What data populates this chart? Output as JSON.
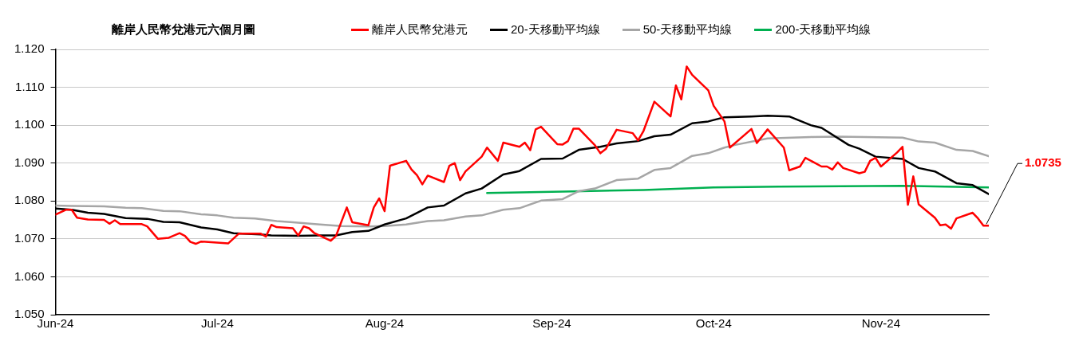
{
  "chart_data": {
    "type": "line",
    "title": "離岸人民幣兌港元六個月圖",
    "legend": "top",
    "grid": "y",
    "marker": "none",
    "line_style": "solid",
    "xlim": [
      "2024-06-01",
      "2024-11-21"
    ],
    "xticks": [
      {
        "value": "2024-06-01",
        "label": "Jun-24"
      },
      {
        "value": "2024-07-01",
        "label": "Jul-24"
      },
      {
        "value": "2024-08-01",
        "label": "Aug-24"
      },
      {
        "value": "2024-09-01",
        "label": "Sep-24"
      },
      {
        "value": "2024-10-01",
        "label": "Oct-24"
      },
      {
        "value": "2024-11-01",
        "label": "Nov-24"
      }
    ],
    "ylim": [
      1.05,
      1.12
    ],
    "yticks": [
      {
        "value": 1.05,
        "label": "1.050"
      },
      {
        "value": 1.06,
        "label": "1.060"
      },
      {
        "value": 1.07,
        "label": "1.070"
      },
      {
        "value": 1.08,
        "label": "1.080"
      },
      {
        "value": 1.09,
        "label": "1.090"
      },
      {
        "value": 1.1,
        "label": "1.100"
      },
      {
        "value": 1.11,
        "label": "1.110"
      },
      {
        "value": 1.12,
        "label": "1.120"
      }
    ],
    "annotations": [
      {
        "text": "1.0735",
        "x": "2024-11-21",
        "y": 1.0735
      }
    ],
    "series": [
      {
        "name": "離岸人民幣兌港元",
        "color": "#ff0000",
        "x": [
          "2024-06-01",
          "2024-06-03",
          "2024-06-04",
          "2024-06-05",
          "2024-06-07",
          "2024-06-10",
          "2024-06-11",
          "2024-06-12",
          "2024-06-13",
          "2024-06-17",
          "2024-06-18",
          "2024-06-20",
          "2024-06-22",
          "2024-06-24",
          "2024-06-25",
          "2024-06-26",
          "2024-06-27",
          "2024-06-28",
          "2024-07-03",
          "2024-07-05",
          "2024-07-09",
          "2024-07-10",
          "2024-07-11",
          "2024-07-12",
          "2024-07-15",
          "2024-07-16",
          "2024-07-17",
          "2024-07-18",
          "2024-07-19",
          "2024-07-22",
          "2024-07-23",
          "2024-07-25",
          "2024-07-26",
          "2024-07-29",
          "2024-07-30",
          "2024-07-31",
          "2024-08-01",
          "2024-08-02",
          "2024-08-05",
          "2024-08-06",
          "2024-08-07",
          "2024-08-08",
          "2024-08-09",
          "2024-08-12",
          "2024-08-13",
          "2024-08-14",
          "2024-08-15",
          "2024-08-16",
          "2024-08-19",
          "2024-08-20",
          "2024-08-22",
          "2024-08-23",
          "2024-08-26",
          "2024-08-27",
          "2024-08-28",
          "2024-08-29",
          "2024-08-30",
          "2024-09-02",
          "2024-09-03",
          "2024-09-04",
          "2024-09-05",
          "2024-09-06",
          "2024-09-09",
          "2024-09-10",
          "2024-09-11",
          "2024-09-13",
          "2024-09-16",
          "2024-09-17",
          "2024-09-18",
          "2024-09-20",
          "2024-09-23",
          "2024-09-24",
          "2024-09-25",
          "2024-09-26",
          "2024-09-27",
          "2024-09-30",
          "2024-10-01",
          "2024-10-03",
          "2024-10-04",
          "2024-10-08",
          "2024-10-09",
          "2024-10-11",
          "2024-10-14",
          "2024-10-15",
          "2024-10-17",
          "2024-10-18",
          "2024-10-21",
          "2024-10-22",
          "2024-10-23",
          "2024-10-24",
          "2024-10-25",
          "2024-10-28",
          "2024-10-29",
          "2024-10-30",
          "2024-10-31",
          "2024-11-01",
          "2024-11-04",
          "2024-11-05",
          "2024-11-06",
          "2024-11-07",
          "2024-11-08",
          "2024-11-11",
          "2024-11-12",
          "2024-11-13",
          "2024-11-14",
          "2024-11-15",
          "2024-11-18",
          "2024-11-19",
          "2024-11-20",
          "2024-11-21"
        ],
        "values": [
          1.0764,
          1.0777,
          1.0777,
          1.0756,
          1.0751,
          1.075,
          1.074,
          1.0749,
          1.0739,
          1.0739,
          1.0733,
          1.07,
          1.0703,
          1.0715,
          1.0708,
          1.0692,
          1.0687,
          1.0693,
          1.0688,
          1.0714,
          1.0714,
          1.0706,
          1.0737,
          1.0731,
          1.0728,
          1.0709,
          1.0733,
          1.0728,
          1.0715,
          1.0695,
          1.0708,
          1.0783,
          1.0744,
          1.0736,
          1.0783,
          1.0807,
          1.0773,
          1.0893,
          1.0906,
          1.0883,
          1.0868,
          1.0844,
          1.0867,
          1.085,
          1.0893,
          1.09,
          1.0855,
          1.0878,
          1.0917,
          1.0941,
          1.0906,
          1.0954,
          1.0943,
          1.0954,
          1.0934,
          1.0989,
          1.0996,
          1.095,
          1.0949,
          1.0958,
          1.0991,
          1.0991,
          1.0947,
          1.0926,
          1.0937,
          1.0988,
          1.0979,
          1.096,
          1.0985,
          1.1062,
          1.1023,
          1.1105,
          1.1068,
          1.1155,
          1.1133,
          1.1092,
          1.1051,
          1.101,
          1.0941,
          1.099,
          1.0953,
          1.0989,
          1.0941,
          1.0881,
          1.0891,
          1.0914,
          1.0891,
          1.0891,
          1.0883,
          1.0902,
          1.0887,
          1.0873,
          1.0877,
          1.0906,
          1.0914,
          1.0891,
          1.0928,
          1.0943,
          1.079,
          1.0865,
          1.0791,
          1.0756,
          1.0736,
          1.0738,
          1.0727,
          1.0754,
          1.0769,
          1.0754,
          1.0735,
          1.0735
        ]
      },
      {
        "name": "20-天移動平均線",
        "color": "#000000",
        "x": [
          "2024-06-01",
          "2024-06-04",
          "2024-06-07",
          "2024-06-10",
          "2024-06-14",
          "2024-06-18",
          "2024-06-21",
          "2024-06-24",
          "2024-06-28",
          "2024-07-01",
          "2024-07-04",
          "2024-07-09",
          "2024-07-11",
          "2024-07-16",
          "2024-07-20",
          "2024-07-23",
          "2024-07-26",
          "2024-07-29",
          "2024-08-01",
          "2024-08-05",
          "2024-08-09",
          "2024-08-12",
          "2024-08-16",
          "2024-08-19",
          "2024-08-23",
          "2024-08-26",
          "2024-08-30",
          "2024-09-03",
          "2024-09-06",
          "2024-09-10",
          "2024-09-13",
          "2024-09-17",
          "2024-09-20",
          "2024-09-23",
          "2024-09-27",
          "2024-09-30",
          "2024-10-03",
          "2024-10-08",
          "2024-10-11",
          "2024-10-15",
          "2024-10-19",
          "2024-10-21",
          "2024-10-26",
          "2024-10-28",
          "2024-10-31",
          "2024-11-05",
          "2024-11-08",
          "2024-11-11",
          "2024-11-15",
          "2024-11-18",
          "2024-11-21"
        ],
        "values": [
          1.078,
          1.0777,
          1.0769,
          1.0766,
          1.0755,
          1.0753,
          1.0745,
          1.0744,
          1.073,
          1.0725,
          1.0715,
          1.0712,
          1.0709,
          1.0708,
          1.0709,
          1.0709,
          1.0718,
          1.0721,
          1.0738,
          1.0754,
          1.0783,
          1.0788,
          1.082,
          1.0833,
          1.087,
          1.0879,
          1.0911,
          1.0912,
          1.0935,
          1.0943,
          1.0952,
          1.0958,
          1.0971,
          1.0975,
          1.1005,
          1.101,
          1.1021,
          1.1023,
          1.1025,
          1.1023,
          1.1,
          1.0993,
          1.0948,
          1.0938,
          1.0917,
          1.0911,
          1.0887,
          1.0878,
          1.0847,
          1.0842,
          1.0818
        ]
      },
      {
        "name": "50-天移動平均線",
        "color": "#a6a6a6",
        "x": [
          "2024-06-01",
          "2024-06-04",
          "2024-06-10",
          "2024-06-14",
          "2024-06-17",
          "2024-06-21",
          "2024-06-24",
          "2024-06-28",
          "2024-07-01",
          "2024-07-04",
          "2024-07-08",
          "2024-07-12",
          "2024-07-15",
          "2024-07-20",
          "2024-07-24",
          "2024-07-29",
          "2024-08-01",
          "2024-08-05",
          "2024-08-09",
          "2024-08-12",
          "2024-08-16",
          "2024-08-19",
          "2024-08-23",
          "2024-08-26",
          "2024-08-30",
          "2024-09-03",
          "2024-09-06",
          "2024-09-09",
          "2024-09-13",
          "2024-09-17",
          "2024-09-20",
          "2024-09-23",
          "2024-09-27",
          "2024-09-30",
          "2024-10-03",
          "2024-10-05",
          "2024-10-11",
          "2024-10-19",
          "2024-10-24",
          "2024-10-29",
          "2024-11-05",
          "2024-11-08",
          "2024-11-11",
          "2024-11-15",
          "2024-11-18",
          "2024-11-21"
        ],
        "values": [
          1.0788,
          1.0787,
          1.0786,
          1.0782,
          1.0781,
          1.0774,
          1.0773,
          1.0765,
          1.0762,
          1.0756,
          1.0754,
          1.0747,
          1.0744,
          1.0738,
          1.0734,
          1.0733,
          1.0734,
          1.0738,
          1.0747,
          1.0749,
          1.0759,
          1.0762,
          1.0777,
          1.0781,
          1.0801,
          1.0805,
          1.0826,
          1.0833,
          1.0855,
          1.0859,
          1.0882,
          1.0887,
          1.0919,
          1.0926,
          1.0941,
          1.0948,
          1.0965,
          1.0969,
          1.097,
          1.0969,
          1.0967,
          1.0957,
          1.0954,
          1.0935,
          1.0932,
          1.0918
        ]
      },
      {
        "name": "200-天移動平均線",
        "color": "#00b050",
        "x": [
          "2024-08-20",
          "2024-09-03",
          "2024-09-18",
          "2024-10-01",
          "2024-10-13",
          "2024-11-05",
          "2024-11-21"
        ],
        "values": [
          1.0821,
          1.0825,
          1.0829,
          1.0836,
          1.0838,
          1.084,
          1.0836
        ]
      }
    ]
  }
}
